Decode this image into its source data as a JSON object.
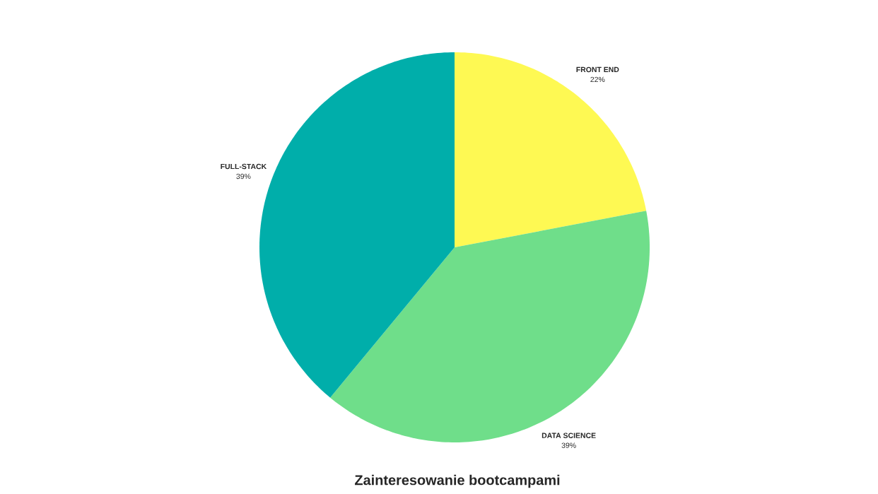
{
  "chart_data": {
    "type": "pie",
    "title": "Zainteresowanie bootcampami",
    "categories": [
      "FRONT END",
      "DATA SCIENCE",
      "FULL-STACK"
    ],
    "values": [
      22,
      39,
      39
    ],
    "value_labels": [
      "22%",
      "39%",
      "39%"
    ],
    "colors": [
      "#fef953",
      "#6fde8a",
      "#00aeaa"
    ]
  }
}
